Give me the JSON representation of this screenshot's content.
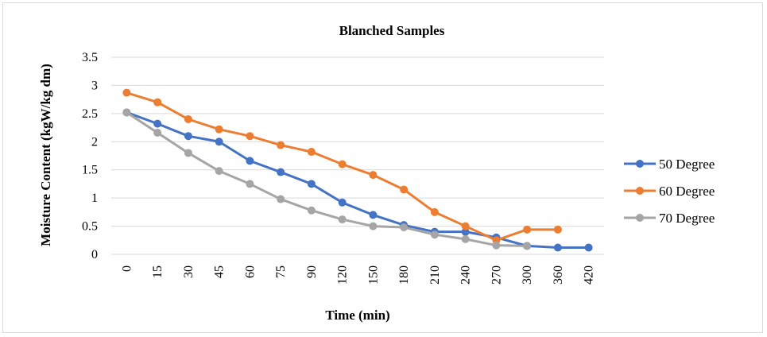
{
  "chart_data": {
    "type": "line",
    "title": "Blanched Samples",
    "xlabel": "Time (min)",
    "ylabel": "Moisture Content (kgW/kg dm)",
    "categories": [
      "0",
      "15",
      "30",
      "45",
      "60",
      "75",
      "90",
      "120",
      "150",
      "180",
      "210",
      "240",
      "270",
      "300",
      "360",
      "420"
    ],
    "yticks": [
      "0",
      "0.5",
      "1",
      "1.5",
      "2",
      "2.5",
      "3",
      "3.5"
    ],
    "ylim": [
      0,
      3.5
    ],
    "grid": true,
    "legend_position": "right",
    "series": [
      {
        "name": "50 Degree",
        "color": "#4472c4",
        "values": [
          2.52,
          2.32,
          2.1,
          2.0,
          1.66,
          1.46,
          1.25,
          0.92,
          0.7,
          0.52,
          0.4,
          0.4,
          0.3,
          0.15,
          0.12,
          0.12
        ]
      },
      {
        "name": "60 Degree",
        "color": "#ed7d31",
        "values": [
          2.87,
          2.7,
          2.4,
          2.22,
          2.1,
          1.94,
          1.82,
          1.6,
          1.41,
          1.15,
          0.75,
          0.5,
          0.25,
          0.44,
          0.44,
          null
        ]
      },
      {
        "name": "70 Degree",
        "color": "#a5a5a5",
        "values": [
          2.52,
          2.16,
          1.8,
          1.48,
          1.25,
          0.98,
          0.78,
          0.62,
          0.5,
          0.48,
          0.35,
          0.27,
          0.16,
          0.15,
          null,
          null
        ]
      }
    ]
  }
}
